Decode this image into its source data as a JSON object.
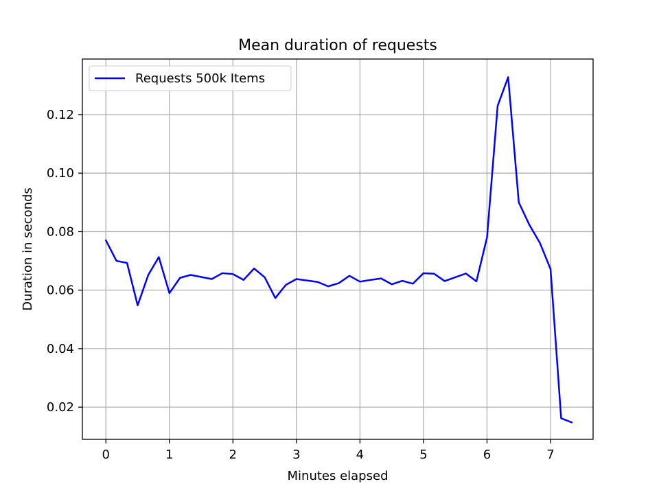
{
  "chart_data": {
    "type": "line",
    "title": "Mean duration of requests",
    "xlabel": "Minutes elapsed",
    "ylabel": "Duration in seconds",
    "xlim": [
      -0.37,
      7.67
    ],
    "ylim": [
      0.009,
      0.139
    ],
    "xticks": [
      0,
      1,
      2,
      3,
      4,
      5,
      6,
      7
    ],
    "xtick_labels": [
      "0",
      "1",
      "2",
      "3",
      "4",
      "5",
      "6",
      "7"
    ],
    "yticks": [
      0.02,
      0.04,
      0.06,
      0.08,
      0.1,
      0.12
    ],
    "ytick_labels": [
      "0.02",
      "0.04",
      "0.06",
      "0.08",
      "0.10",
      "0.12"
    ],
    "grid": true,
    "legend_position": "top-left",
    "series": [
      {
        "name": "Requests 500k Items",
        "color": "#0000ff",
        "x": [
          0,
          0.167,
          0.333,
          0.5,
          0.667,
          0.833,
          1.0,
          1.167,
          1.333,
          1.5,
          1.667,
          1.833,
          2.0,
          2.167,
          2.333,
          2.5,
          2.667,
          2.833,
          3.0,
          3.167,
          3.333,
          3.5,
          3.667,
          3.833,
          4.0,
          4.167,
          4.333,
          4.5,
          4.667,
          4.833,
          5.0,
          5.167,
          5.333,
          5.5,
          5.667,
          5.833,
          6.0,
          6.167,
          6.333,
          6.5,
          6.667,
          6.833,
          7.0,
          7.167,
          7.333
        ],
        "y": [
          0.077,
          0.07,
          0.0693,
          0.0548,
          0.0652,
          0.0713,
          0.059,
          0.0642,
          0.0652,
          0.0645,
          0.0638,
          0.0658,
          0.0655,
          0.0635,
          0.0674,
          0.0644,
          0.0573,
          0.0618,
          0.0638,
          0.0633,
          0.0628,
          0.0613,
          0.0624,
          0.0649,
          0.0629,
          0.0635,
          0.064,
          0.062,
          0.0632,
          0.0622,
          0.0658,
          0.0656,
          0.0631,
          0.0644,
          0.0657,
          0.063,
          0.078,
          0.123,
          0.1328,
          0.09,
          0.0823,
          0.0761,
          0.0672,
          0.0162,
          0.0148
        ]
      }
    ]
  }
}
